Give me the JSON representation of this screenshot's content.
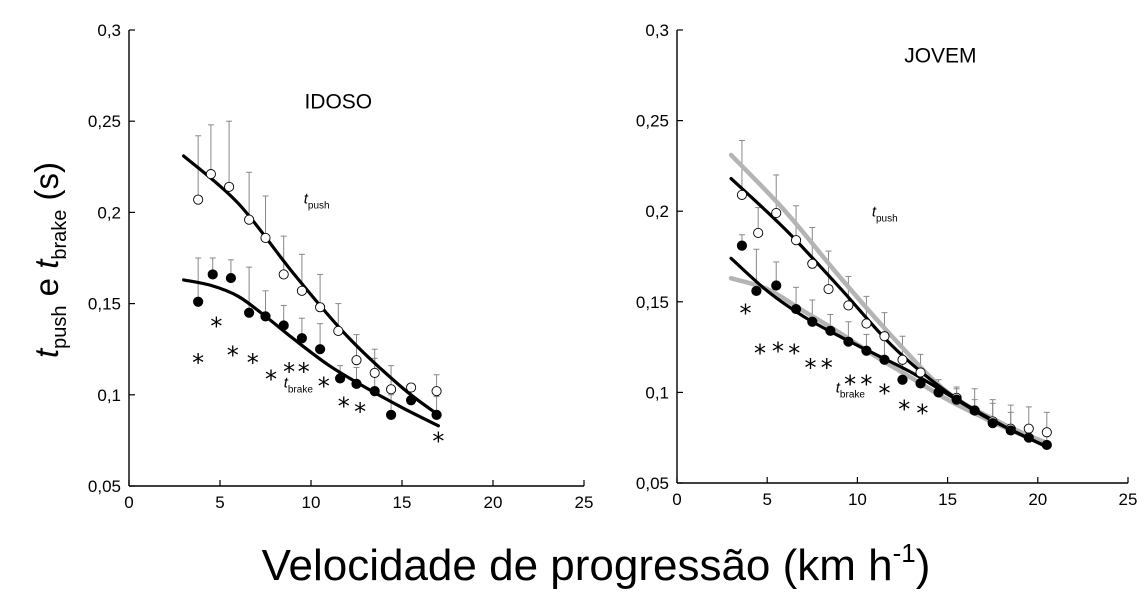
{
  "figure": {
    "xlabel_main": "Velocidade de progressão (km h",
    "xlabel_sup": "-1",
    "xlabel_close": ")",
    "ylabel": {
      "t1": "t",
      "sub1": "push",
      "mid": " e ",
      "t2": "t",
      "sub2": "brake",
      "unit": " (s)"
    }
  },
  "chart_data": [
    {
      "type": "scatter",
      "panel_label": "IDOSO",
      "xlim": [
        0,
        25
      ],
      "ylim": [
        0.05,
        0.3
      ],
      "x_ticks": [
        "0",
        "5",
        "10",
        "15",
        "20",
        "25"
      ],
      "y_ticks": [
        "0,05",
        "0,1",
        "0,15",
        "0,2",
        "0,25",
        "0,3"
      ],
      "x_tick_values": [
        0,
        5,
        10,
        15,
        20,
        25
      ],
      "y_tick_values": [
        0.05,
        0.1,
        0.15,
        0.2,
        0.25,
        0.3
      ],
      "series": [
        {
          "name": "push",
          "label_t": "t",
          "label_sub": "push",
          "label_at": [
            9.6,
            0.205
          ],
          "marker": "open",
          "x": [
            3.8,
            4.5,
            5.5,
            6.6,
            7.5,
            8.5,
            9.5,
            10.5,
            11.5,
            12.5,
            13.5,
            14.4,
            15.5,
            16.9
          ],
          "y": [
            0.207,
            0.221,
            0.214,
            0.196,
            0.186,
            0.166,
            0.157,
            0.148,
            0.135,
            0.119,
            0.112,
            0.103,
            0.104,
            0.102
          ],
          "err": [
            0.035,
            0.027,
            0.036,
            0.026,
            0.023,
            0.021,
            0.02,
            0.018,
            0.015,
            0.014,
            0.013,
            0.013,
            0.001,
            0.009
          ]
        },
        {
          "name": "brake",
          "label_t": "t",
          "label_sub": "brake",
          "label_at": [
            8.5,
            0.104
          ],
          "marker": "filled",
          "x": [
            3.8,
            4.6,
            5.6,
            6.6,
            7.5,
            8.5,
            9.5,
            10.5,
            11.6,
            12.5,
            13.5,
            14.4,
            15.5,
            16.9
          ],
          "y": [
            0.151,
            0.166,
            0.164,
            0.145,
            0.143,
            0.138,
            0.131,
            0.125,
            0.109,
            0.106,
            0.102,
            0.089,
            0.097,
            0.089
          ],
          "err": [
            0.024,
            0.009,
            0.01,
            0.025,
            0.014,
            0.011,
            0.011,
            0.014,
            0.007,
            0.009,
            0.018,
            0.011,
            0.005,
            0.01
          ]
        }
      ],
      "fits": [
        {
          "color": "#000000",
          "x": [
            3,
            6,
            9,
            12,
            15,
            17
          ],
          "y": [
            0.231,
            0.205,
            0.167,
            0.132,
            0.104,
            0.089
          ]
        },
        {
          "color": "#000000",
          "x": [
            3,
            4.5,
            6,
            7.5,
            9,
            11,
            13,
            15,
            17
          ],
          "y": [
            0.163,
            0.16,
            0.154,
            0.143,
            0.131,
            0.116,
            0.104,
            0.093,
            0.083
          ]
        }
      ],
      "stars": [
        {
          "x": 3.8,
          "y": 0.118
        },
        {
          "x": 4.8,
          "y": 0.138
        },
        {
          "x": 5.7,
          "y": 0.122
        },
        {
          "x": 6.8,
          "y": 0.118
        },
        {
          "x": 7.8,
          "y": 0.109
        },
        {
          "x": 8.8,
          "y": 0.113
        },
        {
          "x": 9.6,
          "y": 0.113
        },
        {
          "x": 10.7,
          "y": 0.105
        },
        {
          "x": 11.8,
          "y": 0.094
        },
        {
          "x": 12.7,
          "y": 0.091
        },
        {
          "x": 17.0,
          "y": 0.075
        }
      ]
    },
    {
      "type": "scatter",
      "panel_label": "JOVEM",
      "xlim": [
        0,
        25
      ],
      "ylim": [
        0.05,
        0.3
      ],
      "x_ticks": [
        "0",
        "5",
        "10",
        "15",
        "20",
        "25"
      ],
      "y_ticks": [
        "0,05",
        "0,1",
        "0,15",
        "0,2",
        "0,25",
        "0,3"
      ],
      "x_tick_values": [
        0,
        5,
        10,
        15,
        20,
        25
      ],
      "y_tick_values": [
        0.05,
        0.1,
        0.15,
        0.2,
        0.25,
        0.3
      ],
      "series": [
        {
          "name": "push",
          "label_t": "t",
          "label_sub": "push",
          "label_at": [
            10.8,
            0.197
          ],
          "marker": "open",
          "x": [
            3.6,
            4.5,
            5.5,
            6.6,
            7.5,
            8.4,
            9.5,
            10.5,
            11.5,
            12.5,
            13.5,
            14.5,
            15.5,
            16.5,
            17.5,
            18.5,
            19.5,
            20.5
          ],
          "y": [
            0.209,
            0.188,
            0.199,
            0.184,
            0.171,
            0.157,
            0.148,
            0.138,
            0.131,
            0.118,
            0.111,
            0.1,
            0.097,
            0.09,
            0.084,
            0.08,
            0.08,
            0.078
          ],
          "err": [
            0.03,
            0.014,
            0.021,
            0.019,
            0.02,
            0.021,
            0.016,
            0.015,
            0.013,
            0.013,
            0.01,
            0.007,
            0.005,
            0.012,
            0.012,
            0.013,
            0.012,
            0.011
          ]
        },
        {
          "name": "brake",
          "label_t": "t",
          "label_sub": "brake",
          "label_at": [
            8.8,
            0.1
          ],
          "marker": "filled",
          "x": [
            3.6,
            4.4,
            5.5,
            6.6,
            7.5,
            8.5,
            9.5,
            10.5,
            11.5,
            12.5,
            13.5,
            14.5,
            15.5,
            16.5,
            17.5,
            18.5,
            19.5,
            20.5
          ],
          "y": [
            0.181,
            0.156,
            0.159,
            0.146,
            0.139,
            0.134,
            0.128,
            0.123,
            0.118,
            0.107,
            0.105,
            0.1,
            0.096,
            0.09,
            0.083,
            0.079,
            0.075,
            0.071
          ],
          "err": [
            0.006,
            0.023,
            0.013,
            0.012,
            0.012,
            0.009,
            0.011,
            0.009,
            0.012,
            0.009,
            0.005,
            0.004,
            0.007,
            0.006,
            0.011,
            0.01,
            0.007,
            0.006
          ]
        }
      ],
      "fits": [
        {
          "color": "#000000",
          "x": [
            3,
            6,
            9,
            12,
            15,
            18,
            20.5
          ],
          "y": [
            0.218,
            0.19,
            0.158,
            0.125,
            0.1,
            0.082,
            0.07
          ]
        },
        {
          "color": "#000000",
          "x": [
            3,
            5,
            7,
            9,
            11,
            13,
            15,
            17,
            19,
            20.5
          ],
          "y": [
            0.174,
            0.156,
            0.142,
            0.131,
            0.121,
            0.111,
            0.099,
            0.087,
            0.077,
            0.07
          ]
        },
        {
          "color": "#b4b4b4",
          "x": [
            3,
            6,
            9,
            12,
            15,
            18,
            20.5
          ],
          "y": [
            0.231,
            0.2,
            0.164,
            0.13,
            0.1,
            0.083,
            0.072
          ]
        },
        {
          "color": "#b4b4b4",
          "x": [
            3,
            5,
            7,
            9,
            11,
            13,
            15,
            17,
            19,
            20.5
          ],
          "y": [
            0.163,
            0.157,
            0.145,
            0.133,
            0.12,
            0.108,
            0.096,
            0.086,
            0.077,
            0.071
          ]
        }
      ],
      "stars": [
        {
          "x": 3.8,
          "y": 0.144
        },
        {
          "x": 4.6,
          "y": 0.122
        },
        {
          "x": 5.6,
          "y": 0.123
        },
        {
          "x": 6.5,
          "y": 0.122
        },
        {
          "x": 7.4,
          "y": 0.114
        },
        {
          "x": 8.3,
          "y": 0.114
        },
        {
          "x": 9.6,
          "y": 0.105
        },
        {
          "x": 10.5,
          "y": 0.105
        },
        {
          "x": 11.5,
          "y": 0.1
        },
        {
          "x": 12.6,
          "y": 0.091
        },
        {
          "x": 13.6,
          "y": 0.089
        }
      ]
    }
  ]
}
